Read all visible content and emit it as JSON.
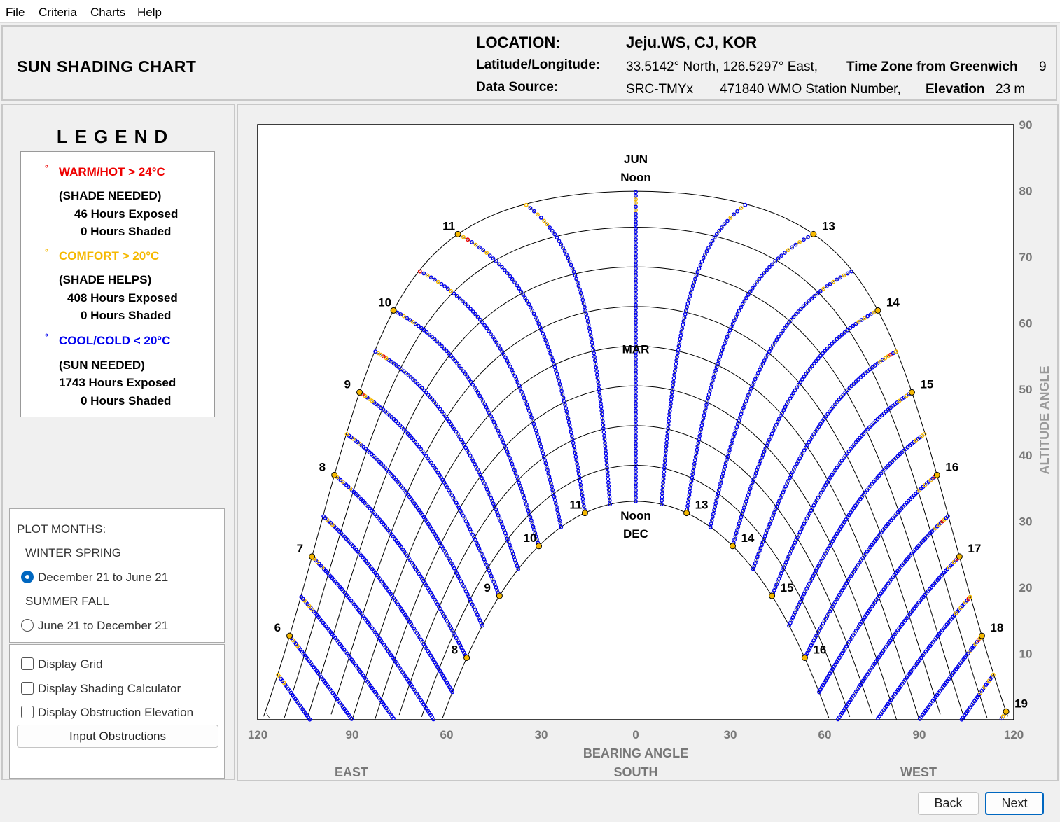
{
  "menu": {
    "file": "File",
    "criteria": "Criteria",
    "charts": "Charts",
    "help": "Help"
  },
  "header": {
    "title": "SUN SHADING CHART",
    "location_label": "LOCATION:",
    "location_value": "Jeju.WS, CJ, KOR",
    "latlon_label": "Latitude/Longitude:",
    "latlon_value": "33.5142° North, 126.5297° East,",
    "tz_label": "Time Zone from Greenwich",
    "tz_value": "9",
    "source_label": "Data Source:",
    "source_value": "SRC-TMYx",
    "wmo_value": "471840 WMO Station Number,",
    "elev_label": "Elevation",
    "elev_value": "23 m"
  },
  "legend": {
    "title": "LEGEND",
    "warm": {
      "name": "WARM/HOT  > 24°C",
      "note": "(SHADE NEEDED)",
      "exposed": "46 Hours Exposed",
      "shaded": "0 Hours Shaded",
      "color": "#ee0000"
    },
    "comfort": {
      "name": "COMFORT  > 20°C",
      "note": "(SHADE HELPS)",
      "exposed": "408 Hours Exposed",
      "shaded": "0 Hours Shaded",
      "color": "#f5b800"
    },
    "cool": {
      "name": "COOL/COLD  < 20°C",
      "note": "(SUN NEEDED)",
      "exposed": "1743 Hours Exposed",
      "shaded": "0 Hours Shaded",
      "color": "#0000ee"
    },
    "dot": "°"
  },
  "plot_months": {
    "title": "PLOT MONTHS:",
    "winter_spring": "WINTER SPRING",
    "ws_range": "December 21 to June 21",
    "summer_fall": "SUMMER FALL",
    "sf_range": "June 21 to December 21",
    "selected": "ws"
  },
  "options": {
    "display_grid": "Display Grid",
    "display_calc": "Display Shading Calculator",
    "display_obst": "Display Obstruction Elevation",
    "input_obstructions": "Input Obstructions"
  },
  "nav": {
    "back": "Back",
    "next": "Next"
  },
  "chart_data": {
    "type": "scatter",
    "title": "",
    "xlabel": "BEARING ANGLE",
    "ylabel": "ALTITUDE ANGLE",
    "xlim": [
      -120,
      120
    ],
    "ylim": [
      0,
      90
    ],
    "x_ticks": [
      "120",
      "90",
      "60",
      "30",
      "0",
      "30",
      "60",
      "90",
      "120"
    ],
    "y_ticks": [
      "10",
      "20",
      "30",
      "40",
      "50",
      "60",
      "70",
      "80",
      "90"
    ],
    "directions": {
      "east": "EAST",
      "south": "SOUTH",
      "west": "WEST"
    },
    "curve_labels": {
      "jun": "JUN",
      "noon": "Noon",
      "mar": "MAR",
      "dec": "DEC"
    },
    "latitude_deg": 33.5142,
    "declinations": [
      23.44,
      0,
      -23.44
    ],
    "hour_labels": [
      {
        "hour": 6,
        "text": "6",
        "curve": "jun"
      },
      {
        "hour": 7,
        "text": "7",
        "curve": "jun"
      },
      {
        "hour": 8,
        "text": "8",
        "curve": "jun"
      },
      {
        "hour": 9,
        "text": "9",
        "curve": "jun"
      },
      {
        "hour": 10,
        "text": "10",
        "curve": "jun"
      },
      {
        "hour": 11,
        "text": "11",
        "curve": "jun"
      },
      {
        "hour": 13,
        "text": "13",
        "curve": "jun"
      },
      {
        "hour": 14,
        "text": "14",
        "curve": "jun"
      },
      {
        "hour": 15,
        "text": "15",
        "curve": "jun"
      },
      {
        "hour": 16,
        "text": "16",
        "curve": "jun"
      },
      {
        "hour": 17,
        "text": "17",
        "curve": "jun"
      },
      {
        "hour": 18,
        "text": "18",
        "curve": "jun"
      },
      {
        "hour": 19,
        "text": "19",
        "curve": "jun"
      },
      {
        "hour": 8,
        "text": "8",
        "curve": "dec"
      },
      {
        "hour": 9,
        "text": "9",
        "curve": "dec"
      },
      {
        "hour": 10,
        "text": "10",
        "curve": "dec"
      },
      {
        "hour": 11,
        "text": "11",
        "curve": "dec"
      },
      {
        "hour": 13,
        "text": "13",
        "curve": "dec"
      },
      {
        "hour": 14,
        "text": "14",
        "curve": "dec"
      },
      {
        "hour": 15,
        "text": "15",
        "curve": "dec"
      },
      {
        "hour": 16,
        "text": "16",
        "curve": "dec"
      }
    ],
    "series": [
      {
        "name": "WARM/HOT  > 24°C",
        "color": "#ee0000"
      },
      {
        "name": "COMFORT  > 20°C",
        "color": "#f5b800"
      },
      {
        "name": "COOL/COLD  < 20°C",
        "color": "#0000ee"
      }
    ]
  }
}
